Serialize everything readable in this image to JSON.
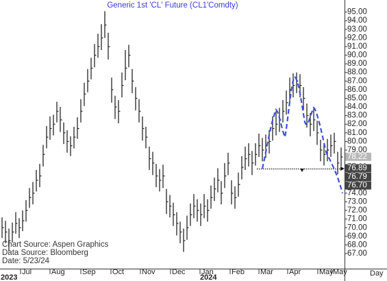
{
  "chart_data": {
    "type": "ohlc",
    "title": "Generic  1st  'CL'  Future  (CL1'Comdty)",
    "color": "#222222",
    "xlim": [
      -0.6,
      100
    ],
    "ylim": [
      65.25,
      96.4
    ],
    "xticks": [
      {
        "value": 5.4,
        "label": "Jul"
      },
      {
        "value": 14,
        "label": "Aug"
      },
      {
        "value": 23,
        "label": "Sep"
      },
      {
        "value": 31.8,
        "label": "Oct"
      },
      {
        "value": 40.4,
        "label": "Nov"
      },
      {
        "value": 49.2,
        "label": "Dec"
      },
      {
        "value": 57.8,
        "label": "Jan"
      },
      {
        "value": 66.6,
        "label": "Feb"
      },
      {
        "value": 75,
        "label": "Mar"
      },
      {
        "value": 83.4,
        "label": "Apr"
      },
      {
        "value": 92.2,
        "label": "May"
      },
      {
        "value": 96.2,
        "label": "May"
      }
    ],
    "year_labels": [
      {
        "value": -0.4,
        "label": "2023"
      },
      {
        "value": 57.8,
        "label": "2024"
      }
    ],
    "x_unit": "Day",
    "yticks": [
      {
        "value": 67,
        "label": "67.00"
      },
      {
        "value": 68,
        "label": "68.00"
      },
      {
        "value": 69,
        "label": "69.00"
      },
      {
        "value": 70,
        "label": "70.00"
      },
      {
        "value": 71,
        "label": "71.00"
      },
      {
        "value": 72,
        "label": "72.00"
      },
      {
        "value": 73,
        "label": "73.00"
      },
      {
        "value": 74,
        "label": "74.00"
      },
      {
        "value": 75,
        "label": "75.00"
      },
      {
        "value": 76,
        "label": "76.00"
      },
      {
        "value": 77,
        "label": "77.00"
      },
      {
        "value": 78,
        "label": "78.00"
      },
      {
        "value": 79,
        "label": "79.00"
      },
      {
        "value": 80,
        "label": "80.00"
      },
      {
        "value": 81,
        "label": "81.00"
      },
      {
        "value": 82,
        "label": "82.00"
      },
      {
        "value": 83,
        "label": "83.00"
      },
      {
        "value": 84,
        "label": "84.00"
      },
      {
        "value": 85,
        "label": "85.00"
      },
      {
        "value": 86,
        "label": "86.00"
      },
      {
        "value": 87,
        "label": "87.00"
      },
      {
        "value": 88,
        "label": "88.00"
      },
      {
        "value": 89,
        "label": "89.00"
      },
      {
        "value": 90,
        "label": "90.00"
      },
      {
        "value": 91,
        "label": "91.00"
      },
      {
        "value": 92,
        "label": "92.00"
      },
      {
        "value": 93,
        "label": "93.00"
      },
      {
        "value": 94,
        "label": "94.00"
      },
      {
        "value": 95,
        "label": "95.00"
      }
    ],
    "price_labels": [
      {
        "value": 78.22,
        "label": "78.22",
        "color": "#b8b8b8"
      },
      {
        "value": 76.89,
        "label": "76.89",
        "color": "#444444"
      },
      {
        "value": 76.79,
        "label": "76.79",
        "color": "#444444"
      },
      {
        "value": 76.7,
        "label": "76.70",
        "color": "#444444"
      }
    ],
    "notes": [
      "Chart  Source:  Aspen Graphics",
      "Data  Source:  Bloomberg",
      "Date:    5/23/24"
    ],
    "high": [
      71.2,
      70.8,
      69.9,
      70.6,
      71.8,
      71.1,
      72.0,
      73.2,
      74.6,
      75.3,
      76.7,
      77.4,
      79.6,
      81.8,
      82.9,
      83.1,
      84.6,
      84.0,
      82.2,
      81.3,
      80.6,
      81.7,
      82.8,
      84.9,
      86.8,
      88.4,
      89.7,
      91.3,
      92.5,
      93.6,
      95.1,
      92.6,
      87.4,
      85.3,
      84.8,
      88.0,
      90.6,
      91.2,
      88.4,
      86.3,
      84.9,
      82.9,
      81.7,
      79.4,
      78.8,
      77.4,
      76.8,
      77.3,
      74.5,
      73.8,
      72.9,
      71.8,
      70.7,
      69.9,
      71.4,
      72.8,
      73.9,
      73.3,
      72.8,
      73.9,
      73.3,
      74.9,
      75.8,
      76.9,
      75.4,
      77.5,
      78.7,
      75.5,
      74.8,
      76.4,
      78.3,
      79.4,
      79.8,
      78.9,
      79.8,
      80.9,
      80.4,
      80.8,
      81.3,
      82.9,
      83.5,
      83.9,
      84.8,
      85.9,
      87.4,
      87.9,
      88.0,
      87.8,
      86.3,
      84.4,
      83.3,
      83.8,
      82.4,
      80.2,
      79.8,
      80.3,
      80.8,
      81.0,
      78.8,
      79.3
    ],
    "low": [
      68.8,
      68.2,
      67.3,
      68.3,
      69.3,
      68.8,
      69.6,
      70.7,
      72.3,
      72.7,
      74.2,
      74.7,
      77.1,
      79.2,
      80.2,
      80.7,
      82.2,
      81.1,
      79.7,
      78.7,
      78.3,
      79.2,
      80.3,
      82.2,
      84.1,
      85.7,
      87.2,
      88.6,
      89.7,
      90.6,
      92.0,
      89.5,
      84.5,
      82.6,
      82.1,
      85.1,
      87.1,
      88.6,
      85.6,
      83.6,
      82.2,
      80.1,
      79.2,
      76.7,
      76.1,
      74.7,
      74.2,
      74.6,
      71.6,
      71.2,
      70.2,
      69.1,
      68.2,
      67.2,
      68.6,
      70.2,
      71.1,
      70.7,
      70.2,
      71.1,
      70.7,
      72.2,
      73.1,
      74.1,
      72.7,
      74.6,
      76.1,
      72.7,
      72.2,
      73.6,
      75.6,
      76.7,
      77.1,
      76.1,
      77.2,
      78.2,
      77.7,
      78.1,
      78.6,
      80.1,
      80.7,
      81.1,
      82.2,
      83.1,
      84.6,
      85.1,
      85.6,
      85.1,
      83.6,
      81.6,
      80.6,
      81.2,
      79.6,
      77.7,
      77.2,
      77.7,
      78.2,
      78.6,
      76.2,
      77.1
    ],
    "close": [
      70.0,
      69.5,
      68.5,
      69.5,
      70.5,
      70.0,
      70.8,
      72.0,
      73.5,
      74.0,
      75.5,
      76.0,
      78.5,
      80.5,
      81.5,
      82.0,
      83.5,
      82.5,
      81.0,
      80.0,
      79.5,
      80.5,
      81.5,
      83.5,
      85.5,
      87.0,
      88.5,
      90.0,
      91.0,
      92.0,
      93.5,
      91.0,
      86.0,
      84.0,
      83.5,
      86.5,
      88.5,
      90.0,
      87.0,
      85.0,
      83.5,
      81.5,
      80.5,
      78.0,
      77.5,
      76.0,
      75.5,
      76.0,
      73.0,
      72.5,
      71.5,
      70.5,
      69.5,
      68.5,
      70.0,
      71.5,
      72.5,
      72.0,
      71.5,
      72.5,
      72.0,
      73.5,
      74.5,
      75.5,
      74.0,
      76.0,
      77.5,
      74.0,
      73.5,
      75.0,
      77.0,
      78.0,
      78.5,
      77.5,
      78.5,
      79.5,
      79.0,
      79.5,
      80.0,
      81.5,
      82.0,
      82.5,
      83.5,
      84.5,
      86.0,
      86.5,
      87.0,
      86.5,
      85.0,
      83.0,
      82.0,
      82.5,
      81.0,
      79.0,
      78.5,
      79.0,
      79.5,
      80.0,
      77.5,
      78.2
    ]
  }
}
